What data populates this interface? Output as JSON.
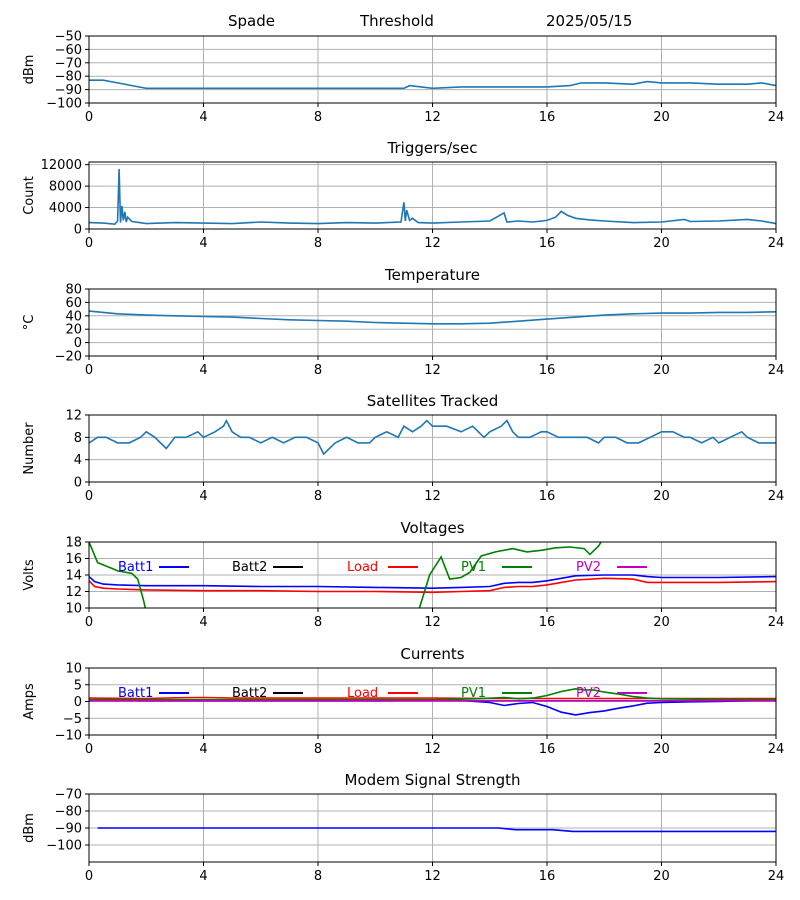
{
  "header": {
    "station": "Spade",
    "mode": "Threshold",
    "date": "2025/05/15"
  },
  "colors": {
    "series_default": "#1f77b4",
    "batt1": "#0000ff",
    "batt2": "#000000",
    "load": "#ff0000",
    "pv1": "#008000",
    "pv2": "#bf00bf",
    "grid": "#b0b0b0"
  },
  "chart_data": [
    {
      "type": "line",
      "title": "",
      "xlabel": "",
      "ylabel": "dBm",
      "xlim": [
        0,
        24
      ],
      "ylim": [
        -100,
        -50
      ],
      "xticks": [
        0,
        4,
        8,
        12,
        16,
        20,
        24
      ],
      "yticks": [
        -100,
        -90,
        -80,
        -70,
        -60,
        -50
      ],
      "ytick_labels": [
        "−100",
        "−90",
        "−80",
        "−70",
        "−60",
        "−50"
      ],
      "grid": true,
      "series": [
        {
          "color": "#1f77b4",
          "x": [
            0,
            0.5,
            1,
            1.5,
            2,
            3,
            4,
            6,
            8,
            10,
            11,
            11.2,
            11.6,
            12,
            13,
            14,
            15,
            16,
            16.8,
            17.2,
            18,
            19,
            19.5,
            20,
            21,
            22,
            23,
            23.5,
            24
          ],
          "y": [
            -83,
            -83,
            -85,
            -87,
            -89,
            -89,
            -89,
            -89,
            -89,
            -89,
            -89,
            -87,
            -88,
            -89,
            -88,
            -88,
            -88,
            -88,
            -87,
            -85,
            -85,
            -86,
            -84,
            -85,
            -85,
            -86,
            -86,
            -85,
            -87
          ]
        }
      ]
    },
    {
      "type": "line",
      "title": "Triggers/sec",
      "xlabel": "",
      "ylabel": "Count",
      "xlim": [
        0,
        24
      ],
      "ylim": [
        0,
        12500
      ],
      "xticks": [
        0,
        4,
        8,
        12,
        16,
        20,
        24
      ],
      "yticks": [
        0,
        4000,
        8000,
        12000
      ],
      "ytick_labels": [
        "0",
        "4000",
        "8000",
        "12000"
      ],
      "grid": true,
      "series": [
        {
          "color": "#1f77b4",
          "x": [
            0,
            0.5,
            0.9,
            1.0,
            1.05,
            1.1,
            1.15,
            1.2,
            1.25,
            1.3,
            1.35,
            1.5,
            2,
            3,
            4,
            5,
            6,
            7,
            8,
            9,
            10,
            10.9,
            11.0,
            11.05,
            11.1,
            11.2,
            11.3,
            11.5,
            12,
            13,
            14,
            14.5,
            14.6,
            15,
            15.5,
            16,
            16.3,
            16.5,
            16.7,
            17,
            17.5,
            18,
            19,
            20,
            20.8,
            21,
            22,
            23,
            23.5,
            24
          ],
          "y": [
            1200,
            1100,
            900,
            1500,
            11200,
            1200,
            4300,
            1600,
            3200,
            1300,
            2200,
            1400,
            1000,
            1200,
            1100,
            1000,
            1300,
            1100,
            1000,
            1200,
            1100,
            1300,
            5000,
            1500,
            3500,
            1600,
            2000,
            1200,
            1100,
            1300,
            1500,
            3000,
            1300,
            1500,
            1300,
            1600,
            2200,
            3300,
            2600,
            2000,
            1700,
            1500,
            1200,
            1300,
            1800,
            1400,
            1500,
            1800,
            1500,
            1000
          ]
        }
      ]
    },
    {
      "type": "line",
      "title": "Temperature",
      "xlabel": "",
      "ylabel": "°C",
      "xlim": [
        0,
        24
      ],
      "ylim": [
        -20,
        80
      ],
      "xticks": [
        0,
        4,
        8,
        12,
        16,
        20,
        24
      ],
      "yticks": [
        -20,
        0,
        20,
        40,
        60,
        80
      ],
      "ytick_labels": [
        "−20",
        "0",
        "20",
        "40",
        "60",
        "80"
      ],
      "grid": true,
      "series": [
        {
          "color": "#1f77b4",
          "x": [
            0,
            0.5,
            1,
            2,
            3,
            4,
            5,
            6,
            7,
            8,
            9,
            10,
            11,
            12,
            13,
            14,
            15,
            16,
            17,
            18,
            19,
            20,
            21,
            22,
            23,
            24
          ],
          "y": [
            47,
            45,
            43,
            41,
            40,
            39,
            38,
            36,
            34,
            33,
            32,
            30,
            29,
            28,
            28,
            29,
            32,
            35,
            38,
            41,
            43,
            44,
            44,
            45,
            45,
            46
          ]
        }
      ]
    },
    {
      "type": "line",
      "title": "Satellites Tracked",
      "xlabel": "",
      "ylabel": "Number",
      "xlim": [
        0,
        24
      ],
      "ylim": [
        0,
        12
      ],
      "xticks": [
        0,
        4,
        8,
        12,
        16,
        20,
        24
      ],
      "yticks": [
        0,
        4,
        8,
        12
      ],
      "ytick_labels": [
        "0",
        "4",
        "8",
        "12"
      ],
      "grid": true,
      "series": [
        {
          "color": "#1f77b4",
          "x": [
            0,
            0.3,
            0.6,
            1,
            1.4,
            1.8,
            2,
            2.3,
            2.7,
            3,
            3.4,
            3.8,
            4,
            4.4,
            4.7,
            4.8,
            5,
            5.3,
            5.6,
            6,
            6.4,
            6.8,
            7.2,
            7.6,
            8,
            8.2,
            8.6,
            9,
            9.4,
            9.8,
            10,
            10.4,
            10.8,
            11,
            11.3,
            11.6,
            11.8,
            12,
            12.5,
            13,
            13.4,
            13.8,
            14,
            14.4,
            14.6,
            14.8,
            15,
            15.4,
            15.8,
            16,
            16.4,
            16.8,
            17,
            17.4,
            17.8,
            18,
            18.4,
            18.8,
            19.2,
            19.6,
            20,
            20.4,
            20.8,
            21,
            21.4,
            21.8,
            22,
            22.4,
            22.8,
            23,
            23.4,
            24
          ],
          "y": [
            7,
            8,
            8,
            7,
            7,
            8,
            9,
            8,
            6,
            8,
            8,
            9,
            8,
            9,
            10,
            11,
            9,
            8,
            8,
            7,
            8,
            7,
            8,
            8,
            7,
            5,
            7,
            8,
            7,
            7,
            8,
            9,
            8,
            10,
            9,
            10,
            11,
            10,
            10,
            9,
            10,
            8,
            9,
            10,
            11,
            9,
            8,
            8,
            9,
            9,
            8,
            8,
            8,
            8,
            7,
            8,
            8,
            7,
            7,
            8,
            9,
            9,
            8,
            8,
            7,
            8,
            7,
            8,
            9,
            8,
            7,
            7
          ]
        }
      ]
    },
    {
      "type": "line",
      "title": "Voltages",
      "xlabel": "",
      "ylabel": "Volts",
      "xlim": [
        0,
        24
      ],
      "ylim": [
        10,
        18
      ],
      "xticks": [
        0,
        4,
        8,
        12,
        16,
        20,
        24
      ],
      "yticks": [
        10,
        12,
        14,
        16,
        18
      ],
      "ytick_labels": [
        "10",
        "12",
        "14",
        "16",
        "18"
      ],
      "grid": true,
      "legend": [
        "Batt1",
        "Batt2",
        "Load",
        "PV1",
        "PV2"
      ],
      "series": [
        {
          "name": "Batt1",
          "color": "#0000ff",
          "x": [
            0,
            0.2,
            0.5,
            1,
            2,
            3,
            4,
            6,
            8,
            10,
            12,
            13,
            14,
            14.5,
            15,
            15.5,
            16,
            16.5,
            17,
            18,
            19,
            19.5,
            20,
            22,
            24
          ],
          "y": [
            13.8,
            13.2,
            12.9,
            12.8,
            12.7,
            12.7,
            12.7,
            12.6,
            12.6,
            12.5,
            12.4,
            12.5,
            12.6,
            13,
            13.1,
            13.1,
            13.3,
            13.6,
            13.9,
            14,
            14,
            13.8,
            13.7,
            13.7,
            13.8
          ]
        },
        {
          "name": "Batt2",
          "color": "#000000",
          "x": [],
          "y": []
        },
        {
          "name": "Load",
          "color": "#ff0000",
          "x": [
            0,
            0.2,
            0.5,
            1,
            2,
            4,
            6,
            8,
            10,
            12,
            13,
            14,
            14.5,
            15,
            15.5,
            16,
            16.5,
            17,
            18,
            19,
            19.5,
            20,
            22,
            24
          ],
          "y": [
            13.3,
            12.6,
            12.4,
            12.3,
            12.2,
            12.1,
            12.1,
            12,
            12,
            11.9,
            12,
            12.1,
            12.5,
            12.6,
            12.6,
            12.8,
            13.1,
            13.4,
            13.6,
            13.5,
            13.1,
            13.1,
            13.1,
            13.2
          ]
        },
        {
          "name": "PV1",
          "color": "#008000",
          "x": [
            0,
            0.3,
            0.8,
            1,
            1.5,
            1.7,
            1.9,
            2.0,
            11.5,
            11.9,
            12.3,
            12.6,
            13,
            13.3,
            13.7,
            14.2,
            14.8,
            15.3,
            15.8,
            16.3,
            16.8,
            17.3,
            17.5,
            17.8,
            18.0
          ],
          "y": [
            18,
            15.5,
            14.8,
            14.5,
            14.2,
            13.5,
            11,
            9.5,
            9.5,
            14,
            16.2,
            13.5,
            13.7,
            14.3,
            16.3,
            16.8,
            17.2,
            16.8,
            17,
            17.3,
            17.4,
            17.2,
            16.5,
            17.5,
            18.6
          ]
        },
        {
          "name": "PV2",
          "color": "#bf00bf",
          "x": [],
          "y": []
        }
      ]
    },
    {
      "type": "line",
      "title": "Currents",
      "xlabel": "",
      "ylabel": "Amps",
      "xlim": [
        0,
        24
      ],
      "ylim": [
        -10,
        10
      ],
      "xticks": [
        0,
        4,
        8,
        12,
        16,
        20,
        24
      ],
      "yticks": [
        -10,
        -5,
        0,
        5,
        10
      ],
      "ytick_labels": [
        "−10",
        "−5",
        "0",
        "5",
        "10"
      ],
      "grid": true,
      "legend": [
        "Batt1",
        "Batt2",
        "Load",
        "PV1",
        "PV2"
      ],
      "series": [
        {
          "name": "Batt1",
          "color": "#0000ff",
          "x": [
            0,
            2,
            4,
            6,
            8,
            10,
            12,
            13,
            14,
            14.5,
            15,
            15.5,
            16,
            16.5,
            17,
            17.5,
            18,
            18.5,
            19,
            19.5,
            20,
            21,
            22,
            23,
            24
          ],
          "y": [
            0.3,
            0.2,
            0.2,
            0.2,
            0.2,
            0.2,
            0.3,
            0.3,
            -0.3,
            -1.2,
            -0.6,
            -0.3,
            -1.5,
            -3.2,
            -4,
            -3.3,
            -2.8,
            -2,
            -1.3,
            -0.5,
            -0.3,
            -0.1,
            0,
            0.2,
            0.3
          ]
        },
        {
          "name": "Batt2",
          "color": "#000000",
          "x": [],
          "y": []
        },
        {
          "name": "Load",
          "color": "#ff0000",
          "x": [
            0,
            2,
            3,
            4,
            5,
            8,
            12,
            14,
            16,
            18,
            20,
            22,
            24
          ],
          "y": [
            1,
            0.9,
            1.1,
            1.2,
            1,
            1,
            1,
            0.9,
            0.9,
            0.9,
            0.9,
            0.9,
            0.9
          ]
        },
        {
          "name": "PV1",
          "color": "#008000",
          "x": [
            0,
            4,
            8,
            12,
            13.5,
            14.5,
            15,
            15.5,
            16,
            16.5,
            17,
            17.3,
            17.6,
            18,
            18.5,
            19,
            19.5,
            20,
            22,
            24
          ],
          "y": [
            0.5,
            0.5,
            0.5,
            0.5,
            0.8,
            1.2,
            0.8,
            1,
            1.8,
            3,
            3.8,
            3.4,
            3.5,
            2.8,
            2.2,
            1.5,
            1,
            0.8,
            0.6,
            0.6
          ]
        },
        {
          "name": "PV2",
          "color": "#bf00bf",
          "x": [
            0,
            24
          ],
          "y": [
            0.2,
            0.2
          ]
        }
      ]
    },
    {
      "type": "line",
      "title": "Modem Signal Strength",
      "xlabel": "",
      "ylabel": "dBm",
      "xlim": [
        0,
        24
      ],
      "ylim": [
        -110,
        -70
      ],
      "xticks": [
        0,
        4,
        8,
        12,
        16,
        20,
        24
      ],
      "yticks": [
        -100,
        -90,
        -80,
        -70
      ],
      "ytick_labels": [
        "−100",
        "−90",
        "−80",
        "−70"
      ],
      "grid": true,
      "series": [
        {
          "color": "#0000ff",
          "x": [
            0.3,
            2,
            6,
            10,
            14.3,
            14.9,
            15.5,
            16.2,
            16.9,
            17.2,
            20,
            24
          ],
          "y": [
            -90,
            -90,
            -90,
            -90,
            -90,
            -91,
            -91,
            -91,
            -92,
            -92,
            -92,
            -92
          ]
        }
      ]
    }
  ]
}
